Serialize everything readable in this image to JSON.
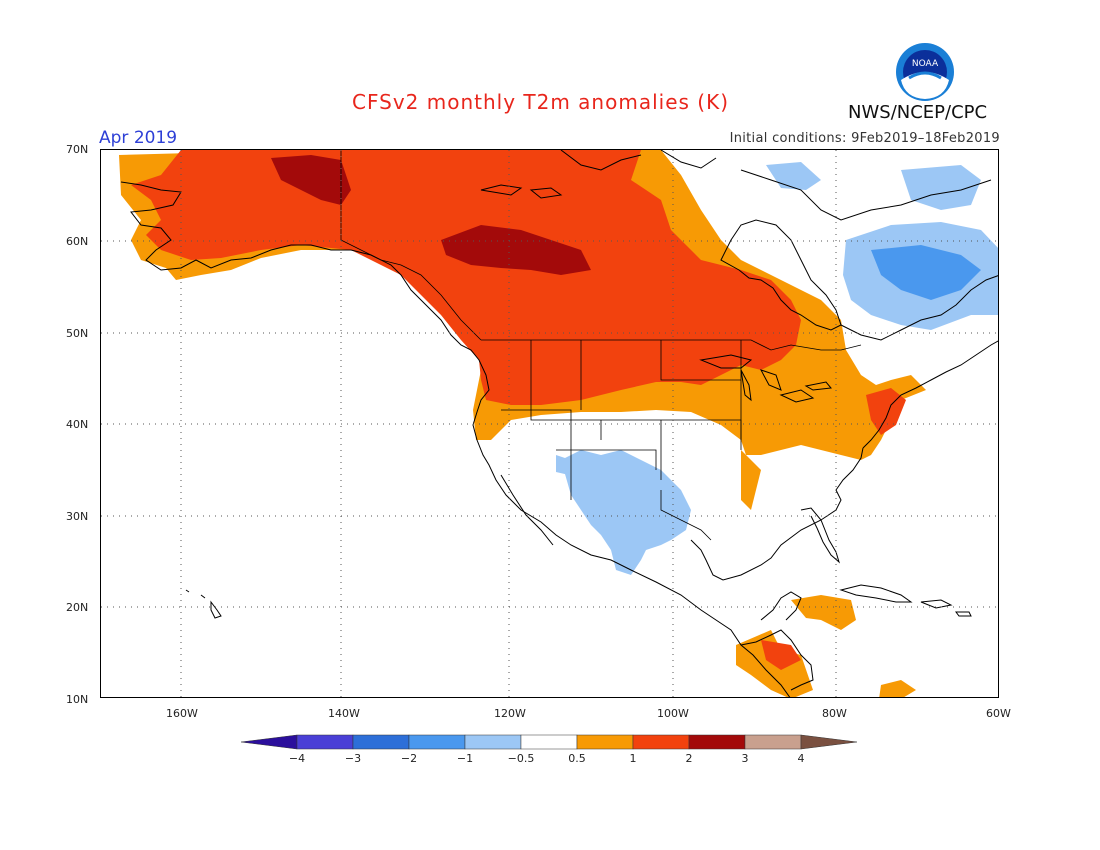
{
  "title": "CFSv2 monthly T2m anomalies (K)",
  "month": "Apr 2019",
  "initial_conditions": "Initial conditions: 9Feb2019–18Feb2019",
  "agency": "NWS/NCEP/CPC",
  "logo_text": "NOAA",
  "lat_labels": [
    "70N",
    "60N",
    "50N",
    "40N",
    "30N",
    "20N",
    "10N"
  ],
  "lon_labels": [
    "160W",
    "140W",
    "120W",
    "100W",
    "80W",
    "60W"
  ],
  "colorbar": {
    "labels": [
      "−4",
      "−3",
      "−2",
      "−1",
      "−0.5",
      "0.5",
      "1",
      "2",
      "3",
      "4"
    ],
    "colors": [
      "#2b0f9c",
      "#4a3fd6",
      "#2d6fd8",
      "#4a98ee",
      "#9cc7f5",
      "#ffffff",
      "#f79a05",
      "#f2420e",
      "#a30a0a",
      "#c9a08e",
      "#7a5040"
    ]
  },
  "colors": {
    "coast": "#000000",
    "grid": "#555555",
    "anom_3": "#a30a0a",
    "anom_2": "#f2420e",
    "anom_1": "#f79a05",
    "anom_neg1": "#9cc7f5",
    "anom_neg2": "#4a98ee"
  }
}
